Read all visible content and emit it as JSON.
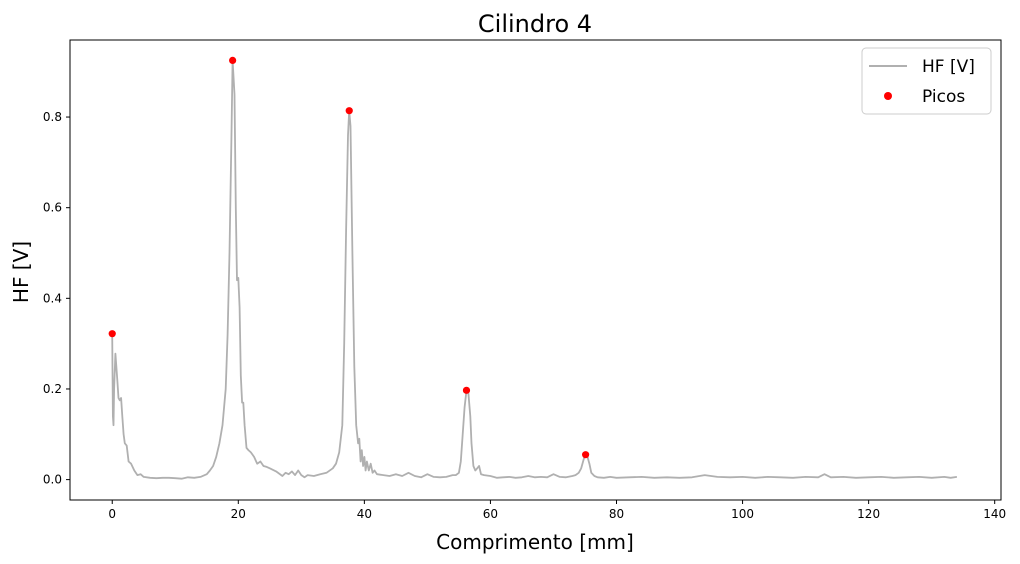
{
  "chart_data": {
    "type": "line",
    "title": "Cilindro 4",
    "xlabel": "Comprimento [mm]",
    "ylabel": "HF [V]",
    "xlim": [
      -6.7,
      141
    ],
    "ylim": [
      -0.045,
      0.97
    ],
    "xticks": [
      0,
      20,
      40,
      60,
      80,
      100,
      120,
      140
    ],
    "yticks": [
      0.0,
      0.2,
      0.4,
      0.6,
      0.8
    ],
    "xtick_labels": [
      "0",
      "20",
      "40",
      "60",
      "80",
      "100",
      "120",
      "140"
    ],
    "ytick_labels": [
      "0.0",
      "0.2",
      "0.4",
      "0.6",
      "0.8"
    ],
    "legend_position": "top-right",
    "grid": false,
    "series": [
      {
        "name": "HF [V]",
        "kind": "line",
        "color": "#b0b0b0",
        "x": [
          0,
          0.1,
          0.2,
          0.3,
          0.5,
          0.8,
          1.0,
          1.2,
          1.4,
          1.6,
          1.8,
          2.0,
          2.3,
          2.6,
          3.0,
          3.5,
          4.0,
          4.5,
          5.0,
          6.0,
          7.0,
          8.0,
          9.0,
          10.0,
          11.0,
          12.0,
          13.0,
          14.0,
          15.0,
          15.5,
          16.0,
          16.5,
          17.0,
          17.5,
          18.0,
          18.3,
          18.6,
          18.9,
          19.1,
          19.4,
          19.6,
          19.8,
          20.0,
          20.2,
          20.4,
          20.6,
          20.8,
          21.0,
          21.3,
          21.6,
          22.0,
          22.5,
          23.0,
          23.5,
          24.0,
          24.5,
          25.0,
          26.0,
          27.0,
          27.5,
          28.0,
          28.5,
          29.0,
          29.5,
          30.0,
          30.5,
          31.0,
          32.0,
          33.0,
          34.0,
          35.0,
          35.5,
          36.0,
          36.5,
          36.8,
          37.1,
          37.4,
          37.6,
          37.8,
          38.1,
          38.4,
          38.7,
          39.0,
          39.2,
          39.4,
          39.6,
          39.8,
          40.0,
          40.2,
          40.4,
          40.7,
          41.0,
          41.3,
          41.6,
          42.0,
          43.0,
          44.0,
          45.0,
          46.0,
          47.0,
          48.0,
          49.0,
          50.0,
          51.0,
          52.0,
          53.0,
          54.0,
          54.5,
          55.0,
          55.3,
          55.6,
          55.9,
          56.2,
          56.5,
          56.8,
          57.0,
          57.3,
          57.6,
          57.9,
          58.2,
          58.5,
          59.0,
          60.0,
          61.0,
          62.0,
          63.0,
          64.0,
          65.0,
          66.0,
          67.0,
          68.0,
          69.0,
          70.0,
          71.0,
          72.0,
          73.0,
          73.5,
          74.0,
          74.4,
          74.8,
          75.1,
          75.4,
          75.7,
          76.0,
          76.5,
          77.0,
          78.0,
          79.0,
          80.0,
          82.0,
          84.0,
          86.0,
          88.0,
          90.0,
          92.0,
          94.0,
          96.0,
          98.0,
          100.0,
          102.0,
          104.0,
          106.0,
          108.0,
          110.0,
          112.0,
          113.0,
          114.0,
          116.0,
          118.0,
          120.0,
          122.0,
          124.0,
          126.0,
          128.0,
          130.0,
          132.0,
          133.0,
          134.0
        ],
        "y": [
          0.322,
          0.14,
          0.12,
          0.2,
          0.278,
          0.22,
          0.18,
          0.175,
          0.18,
          0.14,
          0.1,
          0.08,
          0.075,
          0.04,
          0.035,
          0.02,
          0.01,
          0.012,
          0.006,
          0.004,
          0.003,
          0.004,
          0.004,
          0.003,
          0.002,
          0.005,
          0.004,
          0.006,
          0.012,
          0.02,
          0.03,
          0.05,
          0.08,
          0.12,
          0.2,
          0.32,
          0.5,
          0.75,
          0.925,
          0.85,
          0.6,
          0.44,
          0.445,
          0.38,
          0.23,
          0.17,
          0.17,
          0.12,
          0.07,
          0.065,
          0.06,
          0.05,
          0.035,
          0.04,
          0.03,
          0.028,
          0.025,
          0.018,
          0.008,
          0.015,
          0.012,
          0.018,
          0.01,
          0.02,
          0.01,
          0.005,
          0.01,
          0.008,
          0.012,
          0.015,
          0.025,
          0.035,
          0.06,
          0.12,
          0.3,
          0.55,
          0.76,
          0.814,
          0.78,
          0.5,
          0.25,
          0.12,
          0.08,
          0.09,
          0.04,
          0.065,
          0.03,
          0.05,
          0.02,
          0.04,
          0.02,
          0.035,
          0.015,
          0.02,
          0.012,
          0.01,
          0.008,
          0.012,
          0.008,
          0.015,
          0.008,
          0.005,
          0.012,
          0.006,
          0.005,
          0.006,
          0.01,
          0.01,
          0.015,
          0.04,
          0.1,
          0.16,
          0.197,
          0.19,
          0.14,
          0.08,
          0.03,
          0.02,
          0.025,
          0.03,
          0.012,
          0.01,
          0.008,
          0.004,
          0.005,
          0.006,
          0.004,
          0.005,
          0.008,
          0.005,
          0.006,
          0.005,
          0.012,
          0.006,
          0.005,
          0.008,
          0.01,
          0.015,
          0.025,
          0.045,
          0.055,
          0.05,
          0.035,
          0.015,
          0.008,
          0.005,
          0.004,
          0.006,
          0.004,
          0.005,
          0.006,
          0.004,
          0.005,
          0.004,
          0.005,
          0.01,
          0.006,
          0.005,
          0.006,
          0.004,
          0.006,
          0.005,
          0.004,
          0.006,
          0.005,
          0.012,
          0.005,
          0.006,
          0.004,
          0.005,
          0.006,
          0.004,
          0.005,
          0.006,
          0.004,
          0.006,
          0.004,
          0.006
        ]
      },
      {
        "name": "Picos",
        "kind": "scatter",
        "color": "#ff0000",
        "x": [
          0.0,
          19.1,
          37.6,
          56.2,
          75.1
        ],
        "y": [
          0.322,
          0.925,
          0.814,
          0.197,
          0.055
        ]
      }
    ]
  }
}
